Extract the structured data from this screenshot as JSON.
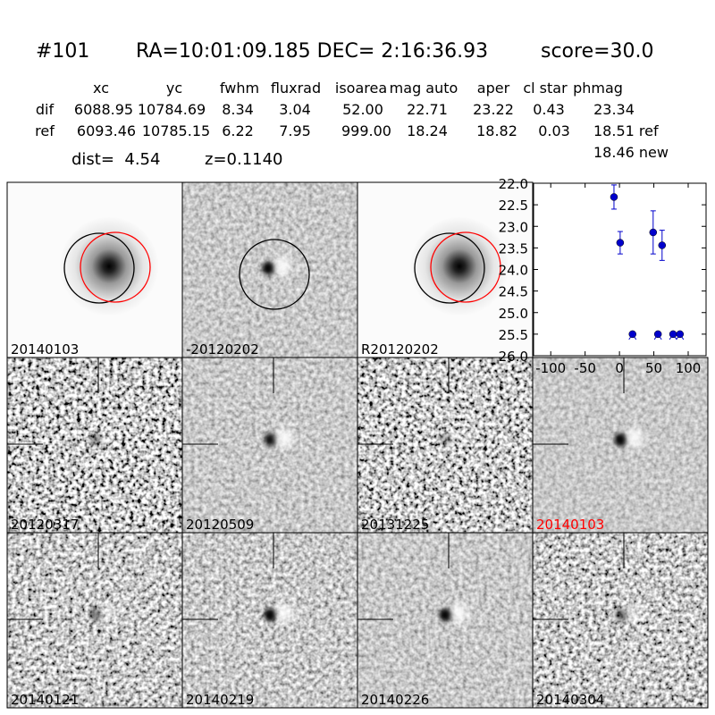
{
  "header": {
    "id": "#101",
    "coords": "RA=10:01:09.185 DEC= 2:16:36.93",
    "score": "score=30.0"
  },
  "table": {
    "columns": [
      "xc",
      "yc",
      "fwhm",
      "fluxrad",
      "isoarea",
      "mag auto",
      "aper",
      "cl star",
      "phmag"
    ],
    "rows": [
      [
        "dif",
        "6088.95",
        "10784.69",
        "8.34",
        "3.04",
        "52.00",
        "22.71",
        "23.22",
        "0.43",
        "23.34"
      ],
      [
        "ref",
        "6093.46",
        "10785.15",
        "6.22",
        "7.95",
        "999.00",
        "18.24",
        "18.82",
        "0.03",
        "18.51 ref"
      ]
    ],
    "extra": "18.46 new"
  },
  "dist": "dist=  4.54",
  "redshift": "z=0.1140",
  "panels": [
    {
      "label": "20140103"
    },
    {
      "label": "-20120202"
    },
    {
      "label": "R20120202"
    },
    {
      "label": "20120317"
    },
    {
      "label": "20120509"
    },
    {
      "label": "20131225"
    },
    {
      "label": "20140103",
      "label_color": "#ff0000"
    },
    {
      "label": "20140121"
    },
    {
      "label": "20140219"
    },
    {
      "label": "20140226"
    },
    {
      "label": "20140304"
    }
  ],
  "chart_data": {
    "type": "scatter",
    "color": "#0000cc",
    "x": [
      -8,
      1,
      19,
      49,
      62,
      56,
      78,
      88
    ],
    "y": [
      22.32,
      23.38,
      25.5,
      23.14,
      23.44,
      25.5,
      25.5,
      25.5
    ],
    "errors": [
      0.28,
      0.26,
      null,
      0.5,
      0.35,
      null,
      null,
      null
    ],
    "xlim": [
      -125,
      126
    ],
    "ylim": [
      26,
      22
    ],
    "y_inverted": true,
    "xticks": [
      -100,
      -50,
      0,
      50,
      100
    ],
    "yticks": [
      {
        "value": 22,
        "label": "22.0"
      },
      {
        "value": 22.5,
        "label": "22.5"
      },
      {
        "value": 23,
        "label": "23.0"
      },
      {
        "value": 23.5,
        "label": "23.5"
      },
      {
        "value": 24,
        "label": "24.0"
      },
      {
        "value": 24.5,
        "label": "24.5"
      },
      {
        "value": 25,
        "label": "25.0"
      },
      {
        "value": 25.5,
        "label": "25.5"
      },
      {
        "value": 26,
        "label": "26.0"
      }
    ]
  }
}
